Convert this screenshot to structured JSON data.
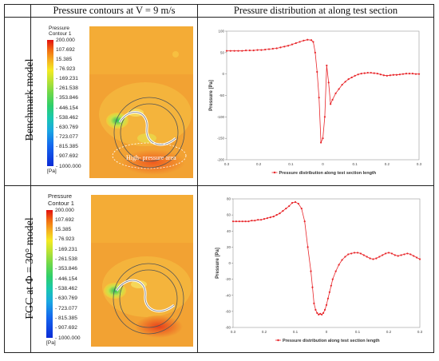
{
  "header": {
    "col2": "Pressure contours at V = 9 m/s",
    "col3": "Pressure distribution at along test section"
  },
  "rows": [
    {
      "label": "Benchmark model"
    },
    {
      "label": "FGC at Φ = 30° model"
    }
  ],
  "contour": {
    "title_line1": "Pressure",
    "title_line2": "Contour 1",
    "ticks": [
      "200.000",
      "107.692",
      "15.385",
      "- 76.923",
      "- 169.231",
      "- 261.538",
      "- 353.846",
      "- 446.154",
      "- 538.462",
      "- 630.769",
      "- 723.077",
      "- 815.385",
      "- 907.692",
      "- 1000.000"
    ],
    "unit": "[Pa]",
    "annotation": "High- pressure area",
    "colors": {
      "high": "#f01818",
      "mid": "#f5b020",
      "field": "#f2a233",
      "low": "#0b2bd6"
    }
  },
  "chart_data": [
    {
      "type": "line",
      "ylabel": "Pressure [Pa]",
      "xlabel": "",
      "legend": "Pressure distribution along test section length",
      "ylim": [
        -200,
        100
      ],
      "yticks": [
        100,
        50,
        0,
        -50,
        -100,
        -150,
        -200
      ],
      "xticklabels": [
        "0.3",
        "0.2",
        "0.1",
        "0",
        "0.1",
        "0.2",
        "0.3"
      ],
      "xlim": [
        -0.3,
        0.3
      ],
      "color": "#e8262a",
      "series": [
        {
          "x": [
            -0.3,
            -0.288,
            -0.276,
            -0.264,
            -0.252,
            -0.24,
            -0.228,
            -0.216,
            -0.204,
            -0.192,
            -0.18,
            -0.168,
            -0.156,
            -0.144,
            -0.132,
            -0.12,
            -0.108,
            -0.096,
            -0.084,
            -0.072,
            -0.06,
            -0.048,
            -0.036,
            -0.03,
            -0.024,
            -0.018,
            -0.012,
            -0.006,
            0,
            0.006,
            0.012,
            0.018,
            0.024,
            0.03,
            0.04,
            0.05,
            0.06,
            0.07,
            0.08,
            0.09,
            0.1,
            0.11,
            0.12,
            0.13,
            0.14,
            0.15,
            0.16,
            0.17,
            0.18,
            0.19,
            0.2,
            0.21,
            0.22,
            0.23,
            0.24,
            0.25,
            0.26,
            0.27,
            0.28,
            0.29,
            0.3
          ],
          "y": [
            54,
            54,
            54,
            54,
            54,
            55,
            55,
            55,
            56,
            56,
            57,
            58,
            59,
            60,
            62,
            64,
            66,
            69,
            72,
            75,
            78,
            80,
            79,
            75,
            50,
            5,
            -55,
            -160,
            -150,
            -100,
            20,
            -20,
            -70,
            -60,
            -45,
            -35,
            -25,
            -18,
            -12,
            -8,
            -4,
            -1,
            1,
            2,
            3,
            3,
            2,
            1,
            -1,
            -3,
            -4,
            -3,
            -2,
            -2,
            -1,
            0,
            1,
            1,
            1,
            0,
            0
          ]
        }
      ]
    },
    {
      "type": "line",
      "ylabel": "Pressure [Pa]",
      "xlabel": "",
      "legend": "Pressure distribution along test section length",
      "ylim": [
        -80,
        80
      ],
      "yticks": [
        80,
        60,
        40,
        20,
        0,
        -20,
        -40,
        -60,
        -80
      ],
      "xticklabels": [
        "0.3",
        "0.2",
        "0.1",
        "0",
        "0.1",
        "0.2",
        "0.3"
      ],
      "xlim": [
        -0.3,
        0.3
      ],
      "color": "#e8262a",
      "series": [
        {
          "x": [
            -0.3,
            -0.29,
            -0.28,
            -0.27,
            -0.26,
            -0.25,
            -0.24,
            -0.23,
            -0.22,
            -0.21,
            -0.2,
            -0.19,
            -0.18,
            -0.17,
            -0.16,
            -0.15,
            -0.14,
            -0.13,
            -0.12,
            -0.11,
            -0.1,
            -0.09,
            -0.08,
            -0.07,
            -0.06,
            -0.05,
            -0.045,
            -0.04,
            -0.035,
            -0.03,
            -0.025,
            -0.02,
            -0.015,
            -0.01,
            -0.005,
            0,
            0.005,
            0.01,
            0.015,
            0.02,
            0.03,
            0.04,
            0.05,
            0.06,
            0.07,
            0.08,
            0.09,
            0.1,
            0.11,
            0.12,
            0.13,
            0.14,
            0.15,
            0.16,
            0.17,
            0.18,
            0.19,
            0.2,
            0.21,
            0.22,
            0.23,
            0.24,
            0.25,
            0.26,
            0.27,
            0.28,
            0.29,
            0.3
          ],
          "y": [
            52,
            52,
            52,
            52,
            52,
            52,
            53,
            53,
            54,
            54,
            55,
            56,
            57,
            58,
            60,
            62,
            65,
            68,
            71,
            75,
            76,
            74,
            68,
            52,
            20,
            -10,
            -30,
            -50,
            -58,
            -62,
            -64,
            -63,
            -64,
            -62,
            -58,
            -52,
            -44,
            -36,
            -28,
            -20,
            -10,
            -2,
            4,
            8,
            11,
            12,
            13,
            13,
            12,
            10,
            8,
            6,
            5,
            6,
            8,
            10,
            12,
            13,
            12,
            10,
            9,
            10,
            11,
            12,
            11,
            9,
            7,
            5
          ]
        }
      ]
    }
  ]
}
